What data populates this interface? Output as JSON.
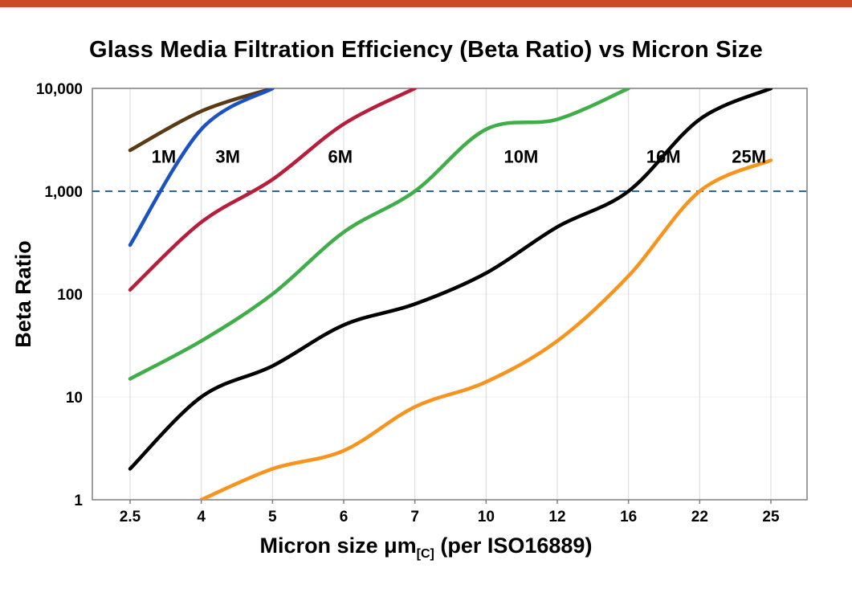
{
  "page": {
    "top_bar_color": "#cb4a27"
  },
  "title": "Glass Media Filtration Efficiency (Beta Ratio) vs Micron Size",
  "chart_data": {
    "type": "line",
    "title": "Glass Media Filtration Efficiency (Beta Ratio) vs Micron Size",
    "x_categories": [
      "2.5",
      "4",
      "5",
      "6",
      "7",
      "10",
      "12",
      "16",
      "22",
      "25"
    ],
    "x_axis_label_main": "Micron size μm",
    "x_axis_label_sub": "[C]",
    "x_axis_label_tail": " (per ISO16889)",
    "y_axis_label": "Beta Ratio",
    "y_scale": "log",
    "ylim": [
      1,
      10000
    ],
    "y_ticks": [
      {
        "value": 1,
        "label": "1"
      },
      {
        "value": 10,
        "label": "10"
      },
      {
        "value": 100,
        "label": "100"
      },
      {
        "value": 1000,
        "label": "1,000"
      },
      {
        "value": 10000,
        "label": "10,000"
      }
    ],
    "grid": {
      "vertical": true,
      "horizontal": true,
      "grid_color": "#d8d8d8",
      "border_color": "#7f7f7f"
    },
    "reference_line": {
      "value": 1000,
      "color": "#33659c",
      "style": "dashed"
    },
    "legend_position": "inline-labels",
    "series": [
      {
        "name": "1M",
        "color": "#5a3a12",
        "label_x": 0.3,
        "label_y": 1900,
        "values": [
          2500,
          6000,
          10000,
          null,
          null,
          null,
          null,
          null,
          null,
          null
        ]
      },
      {
        "name": "3M",
        "color": "#1a52c2",
        "label_x": 1.2,
        "label_y": 1900,
        "values": [
          300,
          4000,
          10000,
          null,
          null,
          null,
          null,
          null,
          null,
          null
        ]
      },
      {
        "name": "6M",
        "color": "#b81d3c",
        "label_x": 2.78,
        "label_y": 1900,
        "values": [
          110,
          500,
          1300,
          4500,
          10000,
          null,
          null,
          null,
          null,
          null
        ]
      },
      {
        "name": "10M",
        "color": "#3fae49",
        "label_x": 5.25,
        "label_y": 1900,
        "values": [
          15,
          35,
          100,
          400,
          1000,
          4000,
          5000,
          10000,
          null,
          null
        ]
      },
      {
        "name": "16M",
        "color": "#000000",
        "label_x": 7.25,
        "label_y": 1900,
        "values": [
          2,
          10,
          20,
          50,
          80,
          160,
          450,
          1000,
          5000,
          10000
        ]
      },
      {
        "name": "25M",
        "color": "#f7941e",
        "label_x": 8.45,
        "label_y": 1900,
        "values": [
          null,
          1,
          2,
          3,
          8,
          14,
          35,
          150,
          1000,
          2000
        ]
      }
    ]
  }
}
